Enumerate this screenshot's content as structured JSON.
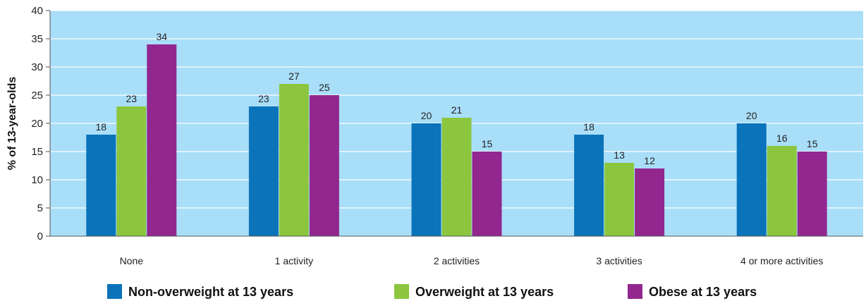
{
  "chart_data": {
    "type": "bar",
    "title": "",
    "xlabel": "",
    "ylabel": "% of 13-year-olds",
    "ylim": [
      0,
      40
    ],
    "yticks": [
      0,
      5,
      10,
      15,
      20,
      25,
      30,
      35,
      40
    ],
    "grid": true,
    "legend_position": "bottom",
    "background_color": "#a9def9",
    "categories": [
      "None",
      "1 activity",
      "2 activities",
      "3 activities",
      "4 or more activities"
    ],
    "series": [
      {
        "name": "Non-overweight at 13 years",
        "color": "#0a73b9",
        "values": [
          18,
          23,
          20,
          18,
          20
        ]
      },
      {
        "name": "Overweight at 13 years",
        "color": "#8cc63f",
        "values": [
          23,
          27,
          21,
          13,
          16
        ]
      },
      {
        "name": "Obese at 13 years",
        "color": "#92278f",
        "values": [
          34,
          25,
          15,
          12,
          15
        ]
      }
    ]
  }
}
